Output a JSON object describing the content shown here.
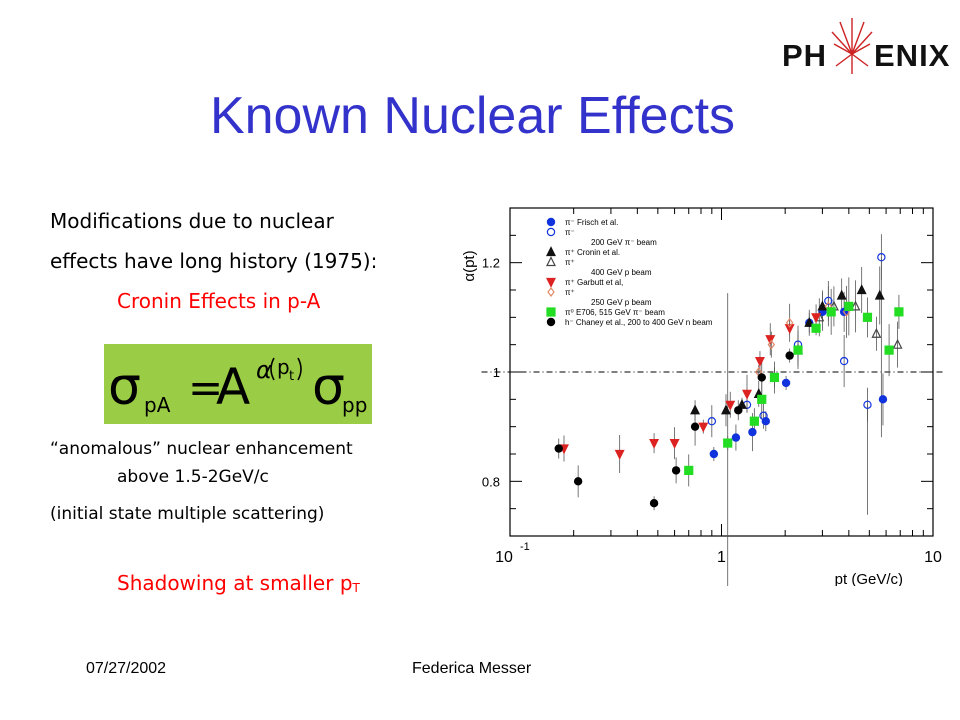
{
  "logo": {
    "left": "PH",
    "right": "ENIX"
  },
  "title": "Known Nuclear Effects",
  "bullets": {
    "line1": "Modifications due to nuclear",
    "line2": "effects have long history (1975):",
    "cronin": "Cronin Effects in p-A",
    "anomalous": "“anomalous” nuclear enhancement",
    "anomalous_cont": "above 1.5-2GeV/c",
    "initial": "(initial state multiple scattering)",
    "shadowing": "Shadowing at smaller p",
    "shadowing_sub": "T"
  },
  "formula": {
    "sigma": "σ",
    "sub_left": "pA",
    "equals": "=",
    "base": "A",
    "exponent_alpha": "α",
    "exponent_p": "p",
    "exponent_sub": "t",
    "sub_right": "pp"
  },
  "footer": {
    "date": "07/27/2002",
    "author": "Federica Messer"
  },
  "colors": {
    "title": "#3333cc",
    "red_text": "#ff0000",
    "formula_bg": "#9acd45"
  },
  "chart_data": {
    "type": "scatter",
    "xlabel": "p_t (GeV/c)",
    "ylabel": "α(pt)",
    "xscale": "log",
    "xlim": [
      0.1,
      10
    ],
    "ylim": [
      0.7,
      1.3
    ],
    "xticks": [
      "10^-1",
      "1",
      "10"
    ],
    "yticks": [
      0.8,
      1,
      1.2
    ],
    "reference_line": 1,
    "legend_position": "top-left",
    "series": [
      {
        "name": "π⁻ Frisch et al.",
        "subtitle": "",
        "marker": "circle",
        "color": "#1133dd",
        "filled": true,
        "points": [
          [
            0.92,
            0.85
          ],
          [
            1.17,
            0.88
          ],
          [
            1.4,
            0.89
          ],
          [
            1.62,
            0.91
          ],
          [
            1.78,
            0.99
          ],
          [
            2.02,
            0.98
          ],
          [
            2.6,
            1.09
          ],
          [
            3.0,
            1.11
          ],
          [
            3.8,
            1.11
          ],
          [
            5.8,
            0.95
          ]
        ]
      },
      {
        "name": "π⁻",
        "subtitle": "200 GeV π⁻ beam",
        "marker": "circle",
        "color": "#1133dd",
        "filled": false,
        "points": [
          [
            0.9,
            0.91
          ],
          [
            1.32,
            0.94
          ],
          [
            1.58,
            0.92
          ],
          [
            2.3,
            1.05
          ],
          [
            3.2,
            1.13
          ],
          [
            3.8,
            1.02
          ],
          [
            4.9,
            0.94
          ],
          [
            5.7,
            1.21
          ]
        ]
      },
      {
        "name": "π⁺ Cronin et al.",
        "subtitle": "",
        "marker": "triangle",
        "color": "#111111",
        "filled": true,
        "points": [
          [
            0.75,
            0.93
          ],
          [
            1.05,
            0.93
          ],
          [
            1.25,
            0.94
          ],
          [
            1.5,
            0.96
          ],
          [
            2.3,
            1.04
          ],
          [
            2.6,
            1.09
          ],
          [
            3.0,
            1.12
          ],
          [
            3.7,
            1.14
          ],
          [
            4.6,
            1.15
          ],
          [
            5.6,
            1.14
          ]
        ]
      },
      {
        "name": "π⁺",
        "subtitle": "400 GeV p beam",
        "marker": "triangle",
        "color": "#444444",
        "filled": false,
        "points": [
          [
            2.9,
            1.1
          ],
          [
            3.4,
            1.12
          ],
          [
            4.3,
            1.12
          ],
          [
            5.4,
            1.07
          ],
          [
            6.8,
            1.05
          ]
        ]
      },
      {
        "name": "π⁺ Garbutt et al,",
        "subtitle": "",
        "marker": "triangle-down",
        "color": "#dd2222",
        "filled": true,
        "points": [
          [
            0.18,
            0.86
          ],
          [
            0.33,
            0.85
          ],
          [
            0.48,
            0.87
          ],
          [
            0.6,
            0.87
          ],
          [
            0.82,
            0.9
          ],
          [
            1.1,
            0.94
          ],
          [
            1.32,
            0.96
          ],
          [
            1.52,
            1.02
          ],
          [
            1.7,
            1.06
          ],
          [
            2.1,
            1.08
          ],
          [
            2.8,
            1.1
          ]
        ]
      },
      {
        "name": "π⁺",
        "subtitle": "250 GeV p beam",
        "marker": "diamond",
        "color": "#e08a6a",
        "filled": false,
        "points": [
          [
            1.5,
            1.0
          ],
          [
            1.72,
            1.05
          ],
          [
            2.1,
            1.09
          ],
          [
            3.2,
            1.12
          ],
          [
            3.9,
            1.11
          ]
        ]
      },
      {
        "name": "π⁰ E706, 515 GeV π⁻ beam",
        "subtitle": "",
        "marker": "square",
        "color": "#22dd22",
        "filled": true,
        "points": [
          [
            0.7,
            0.82
          ],
          [
            1.07,
            0.87
          ],
          [
            1.43,
            0.91
          ],
          [
            1.55,
            0.95
          ],
          [
            1.78,
            0.99
          ],
          [
            2.3,
            1.04
          ],
          [
            2.8,
            1.08
          ],
          [
            3.3,
            1.11
          ],
          [
            4.0,
            1.12
          ],
          [
            4.9,
            1.1
          ],
          [
            6.2,
            1.04
          ],
          [
            6.9,
            1.11
          ]
        ]
      },
      {
        "name": "h⁻ Chaney et al., 200 to 400 GeV n beam",
        "subtitle": "",
        "marker": "circle",
        "color": "#000000",
        "filled": true,
        "points": [
          [
            0.17,
            0.86
          ],
          [
            0.21,
            0.8
          ],
          [
            0.48,
            0.76
          ],
          [
            0.61,
            0.82
          ],
          [
            0.75,
            0.9
          ],
          [
            1.2,
            0.93
          ],
          [
            1.55,
            0.99
          ],
          [
            2.1,
            1.03
          ]
        ]
      }
    ]
  }
}
